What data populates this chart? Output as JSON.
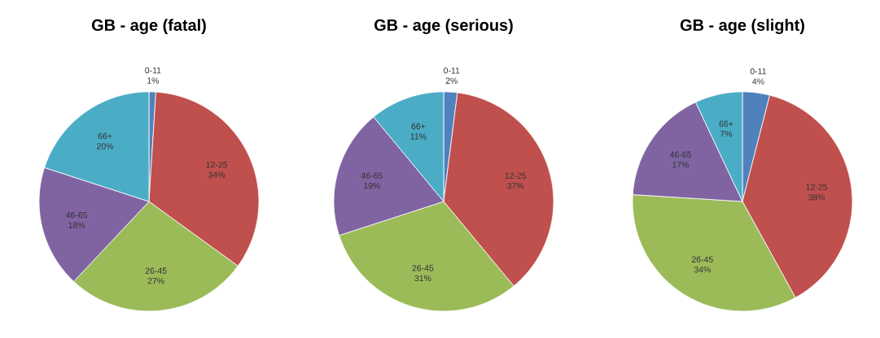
{
  "chart_data": [
    {
      "type": "pie",
      "title": "GB - age (fatal)",
      "categories": [
        "0-11",
        "12-25",
        "26-45",
        "46-65",
        "66+"
      ],
      "values": [
        1,
        34,
        27,
        18,
        20
      ],
      "value_labels": [
        "1%",
        "34%",
        "27%",
        "18%",
        "20%"
      ],
      "colors": [
        "#4f81bd",
        "#c0504d",
        "#9bbb59",
        "#8064a2",
        "#4bacc6"
      ]
    },
    {
      "type": "pie",
      "title": "GB - age (serious)",
      "categories": [
        "0-11",
        "12-25",
        "26-45",
        "46-65",
        "66+"
      ],
      "values": [
        2,
        37,
        31,
        19,
        11
      ],
      "value_labels": [
        "2%",
        "37%",
        "31%",
        "19%",
        "11%"
      ],
      "colors": [
        "#4f81bd",
        "#c0504d",
        "#9bbb59",
        "#8064a2",
        "#4bacc6"
      ]
    },
    {
      "type": "pie",
      "title": "GB - age (slight)",
      "categories": [
        "0-11",
        "12-25",
        "26-45",
        "46-65",
        "66+"
      ],
      "values": [
        4,
        38,
        34,
        17,
        7
      ],
      "value_labels": [
        "4%",
        "38%",
        "34%",
        "17%",
        "7%"
      ],
      "colors": [
        "#4f81bd",
        "#c0504d",
        "#9bbb59",
        "#8064a2",
        "#4bacc6"
      ]
    }
  ]
}
